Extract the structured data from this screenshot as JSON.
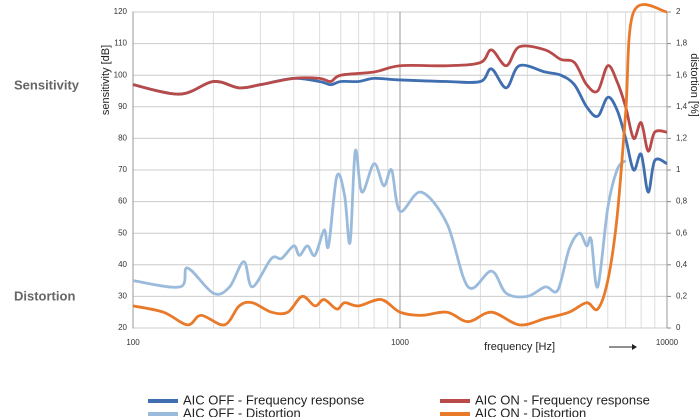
{
  "chart_data": {
    "type": "line",
    "row_labels": [
      "Sensitivity",
      "Distortion"
    ],
    "xlabel": "frequency [Hz]",
    "ylabel": "sensitivity [dB]",
    "y2label": "distortion [%]",
    "xlog": true,
    "grid": true,
    "legend": "bottom",
    "xlim": [
      100,
      10000
    ],
    "xticks": [
      100,
      1000,
      10000
    ],
    "xminorticks": [
      200,
      300,
      400,
      500,
      600,
      700,
      800,
      900,
      2000,
      3000,
      4000,
      5000,
      6000,
      7000,
      8000,
      9000
    ],
    "ylim": [
      20,
      120
    ],
    "yticks": [
      20,
      30,
      40,
      50,
      60,
      70,
      80,
      90,
      100,
      110,
      120
    ],
    "y2lim": [
      0,
      2
    ],
    "y2ticks": [
      0,
      {
        "value": 0.2,
        "label": "0,2"
      },
      {
        "value": 0.4,
        "label": "0,4"
      },
      {
        "value": 0.6,
        "label": "0,6"
      },
      {
        "value": 0.8,
        "label": "0,8"
      },
      1,
      {
        "value": 1.2,
        "label": "1,2"
      },
      {
        "value": 1.4,
        "label": "1,4"
      },
      {
        "value": 1.6,
        "label": "1,6"
      },
      {
        "value": 1.8,
        "label": "1,8"
      },
      2
    ],
    "series": [
      {
        "name": "AIC OFF - Frequency response",
        "color": "#3f6fb0",
        "x": [
          100,
          150,
          200,
          250,
          300,
          400,
          500,
          550,
          600,
          700,
          800,
          1000,
          1500,
          2000,
          2200,
          2500,
          2800,
          3500,
          4000,
          4500,
          5000,
          5500,
          6000,
          6500,
          7000,
          7500,
          8000,
          8500,
          9000,
          10000
        ],
        "values": [
          97,
          94,
          98,
          96,
          97,
          99,
          98,
          97,
          98,
          98,
          99,
          98.5,
          98,
          98,
          102,
          96,
          103,
          101,
          100,
          97,
          90,
          87,
          93,
          89,
          80,
          70,
          75,
          63,
          73,
          72
        ]
      },
      {
        "name": "AIC ON - Frequency response",
        "color": "#b84a4a",
        "x": [
          100,
          150,
          200,
          250,
          300,
          400,
          500,
          550,
          600,
          800,
          1000,
          1500,
          2000,
          2200,
          2500,
          2800,
          3500,
          4000,
          4500,
          5000,
          5500,
          6000,
          6500,
          7000,
          7500,
          8000,
          8500,
          9000,
          10000
        ],
        "values": [
          97,
          94,
          98,
          96,
          97,
          99,
          99,
          98,
          100,
          101,
          103,
          103,
          104,
          108,
          103,
          109,
          108,
          105,
          104,
          97,
          95,
          103,
          98,
          90,
          80,
          85,
          76,
          82,
          82
        ]
      },
      {
        "name": "AIC OFF - Distortion",
        "color": "#9bbbdc",
        "axis": "y2",
        "x": [
          100,
          150,
          160,
          200,
          230,
          260,
          280,
          330,
          360,
          400,
          420,
          450,
          480,
          520,
          540,
          580,
          620,
          650,
          680,
          720,
          800,
          870,
          930,
          1000,
          1200,
          1500,
          1800,
          2200,
          2500,
          3000,
          3500,
          3900,
          4300,
          4700,
          5000,
          5200,
          5500,
          6000,
          6500,
          7000
        ],
        "values": [
          0.3,
          0.26,
          0.38,
          0.22,
          0.26,
          0.42,
          0.26,
          0.44,
          0.44,
          0.52,
          0.46,
          0.52,
          0.46,
          0.62,
          0.52,
          0.96,
          0.84,
          0.54,
          1.12,
          0.86,
          1.04,
          0.9,
          1.0,
          0.74,
          0.86,
          0.66,
          0.26,
          0.36,
          0.22,
          0.2,
          0.26,
          0.24,
          0.5,
          0.6,
          0.52,
          0.56,
          0.26,
          0.76,
          1.0,
          1.06
        ]
      },
      {
        "name": "AIC ON - Distortion",
        "color": "#e87a2a",
        "axis": "y2",
        "x": [
          100,
          130,
          160,
          180,
          220,
          250,
          280,
          330,
          380,
          430,
          480,
          520,
          580,
          620,
          700,
          850,
          1000,
          1200,
          1500,
          1800,
          2200,
          2800,
          3500,
          4300,
          5000,
          5500,
          6000,
          6500,
          7000,
          7500,
          10000
        ],
        "values": [
          0.14,
          0.1,
          0.02,
          0.08,
          0.02,
          0.14,
          0.16,
          0.1,
          0.1,
          0.2,
          0.14,
          0.18,
          0.12,
          0.16,
          0.14,
          0.18,
          0.1,
          0.08,
          0.1,
          0.04,
          0.1,
          0.02,
          0.06,
          0.1,
          0.16,
          0.12,
          0.3,
          0.7,
          1.36,
          2,
          2
        ]
      }
    ]
  }
}
